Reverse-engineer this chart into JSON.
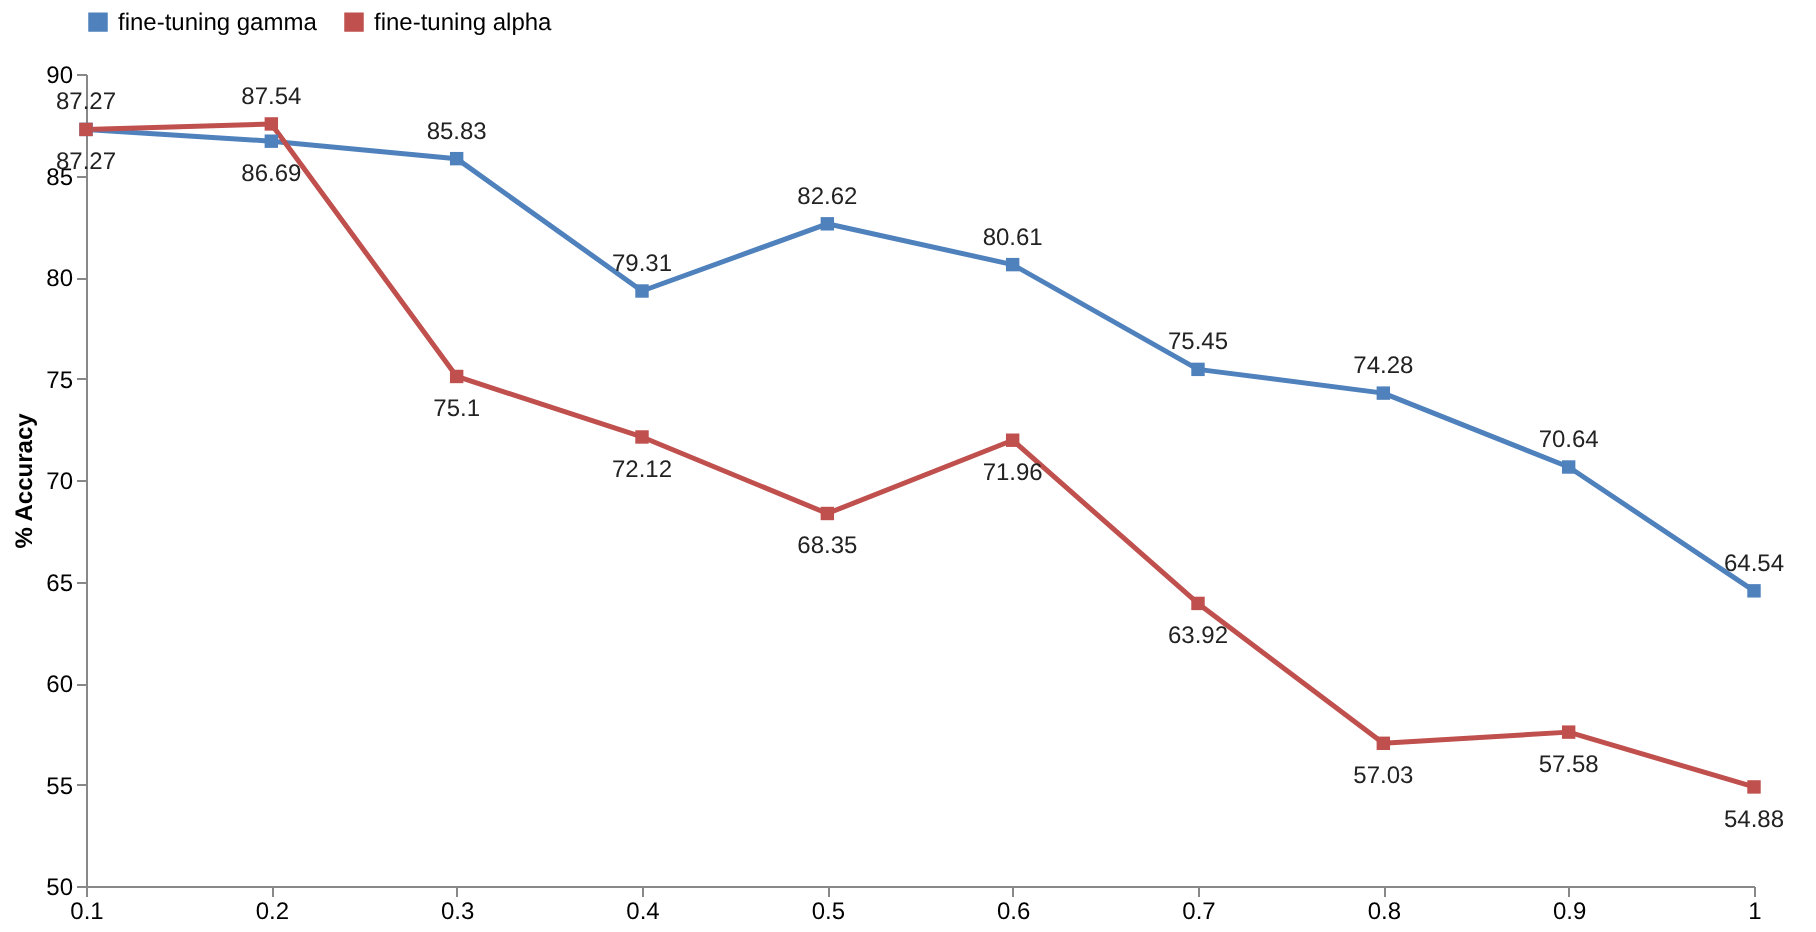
{
  "chart_data": {
    "type": "line",
    "ylabel": "% Accuracy",
    "x": [
      0.1,
      0.2,
      0.3,
      0.4,
      0.5,
      0.6,
      0.7,
      0.8,
      0.9,
      1
    ],
    "series": [
      {
        "name": "fine-tuning gamma",
        "color": "#4f81bd",
        "values": [
          87.27,
          86.69,
          85.83,
          79.31,
          82.62,
          80.61,
          75.45,
          74.28,
          70.64,
          64.54
        ]
      },
      {
        "name": "fine-tuning alpha",
        "color": "#c0504d",
        "values": [
          87.27,
          87.54,
          75.1,
          72.12,
          68.35,
          71.96,
          63.92,
          57.03,
          57.58,
          54.88
        ]
      }
    ],
    "xlim": [
      0.1,
      1
    ],
    "xticks": [
      0.1,
      0.2,
      0.3,
      0.4,
      0.5,
      0.6,
      0.7,
      0.8,
      0.9,
      1
    ],
    "ylim": [
      50,
      90
    ],
    "yticks": [
      50,
      55,
      60,
      65,
      70,
      75,
      80,
      85,
      90
    ],
    "grid": false,
    "legend": "top",
    "marker": "square",
    "line_style": "solid",
    "data_labels": true
  }
}
